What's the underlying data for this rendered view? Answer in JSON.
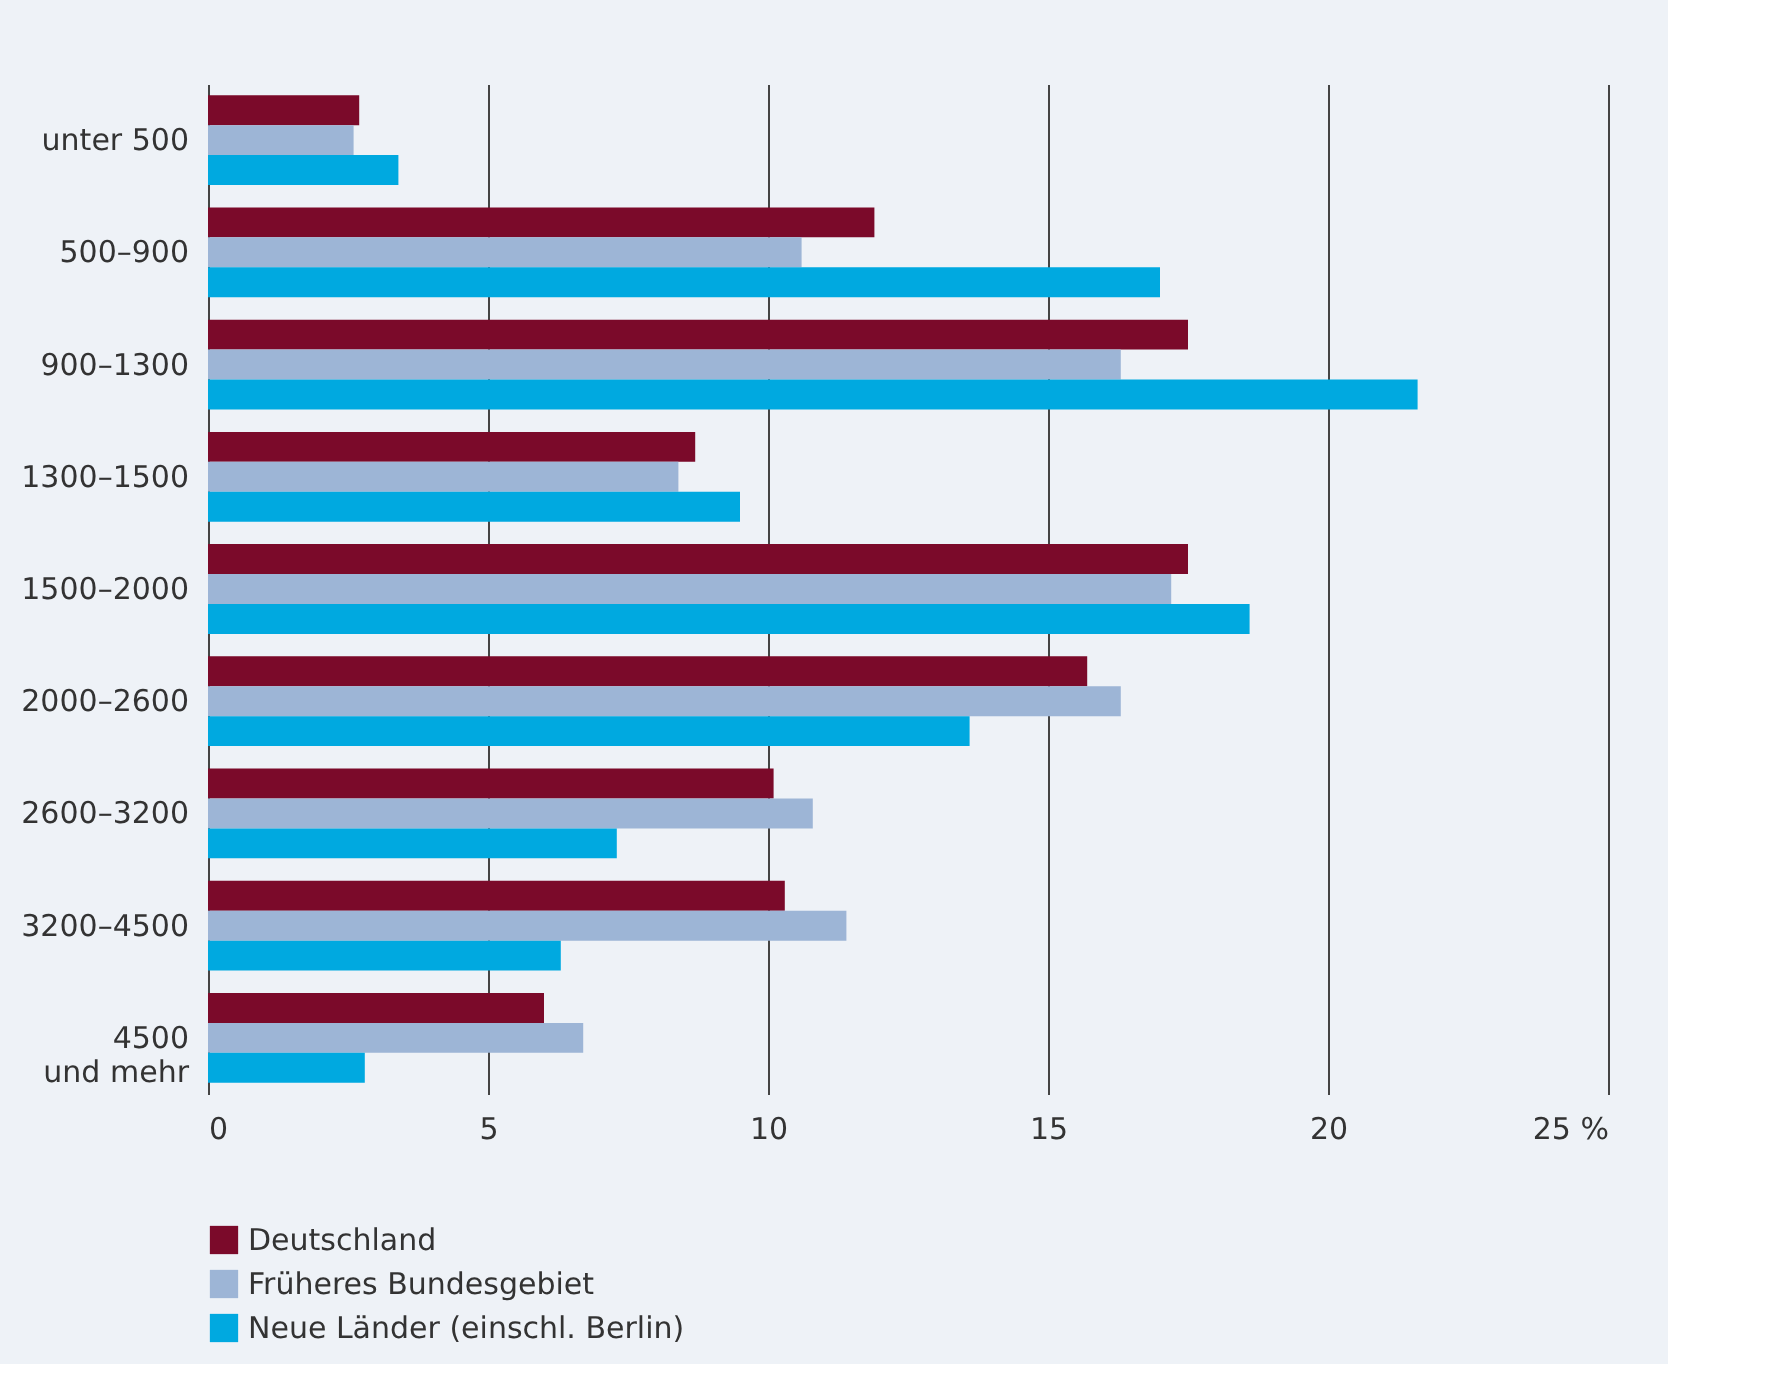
{
  "chart_data": {
    "type": "bar",
    "orientation": "horizontal",
    "categories": [
      "unter 500",
      "500–900",
      "900–1300",
      "1300–1500",
      "1500–2000",
      "2000–2600",
      "2600–3200",
      "3200–4500",
      "4500\nund mehr"
    ],
    "series": [
      {
        "name": "Deutschland",
        "color": "#7b0a2a",
        "values": [
          2.7,
          11.9,
          17.5,
          8.7,
          17.5,
          15.7,
          10.1,
          10.3,
          6.0
        ]
      },
      {
        "name": "Früheres Bundesgebiet",
        "color": "#9db5d6",
        "values": [
          2.6,
          10.6,
          16.3,
          8.4,
          17.2,
          16.3,
          10.8,
          11.4,
          6.7
        ]
      },
      {
        "name": "Neue Länder (einschl. Berlin)",
        "color": "#00a9e0",
        "values": [
          3.4,
          17.0,
          21.6,
          9.5,
          18.6,
          13.6,
          7.3,
          6.3,
          2.8
        ]
      }
    ],
    "xlim": [
      0,
      25
    ],
    "xticks": [
      0,
      5,
      10,
      15,
      20,
      {
        "value": 25,
        "label": "25 %"
      }
    ],
    "grid": "x",
    "legend": "bottom"
  }
}
